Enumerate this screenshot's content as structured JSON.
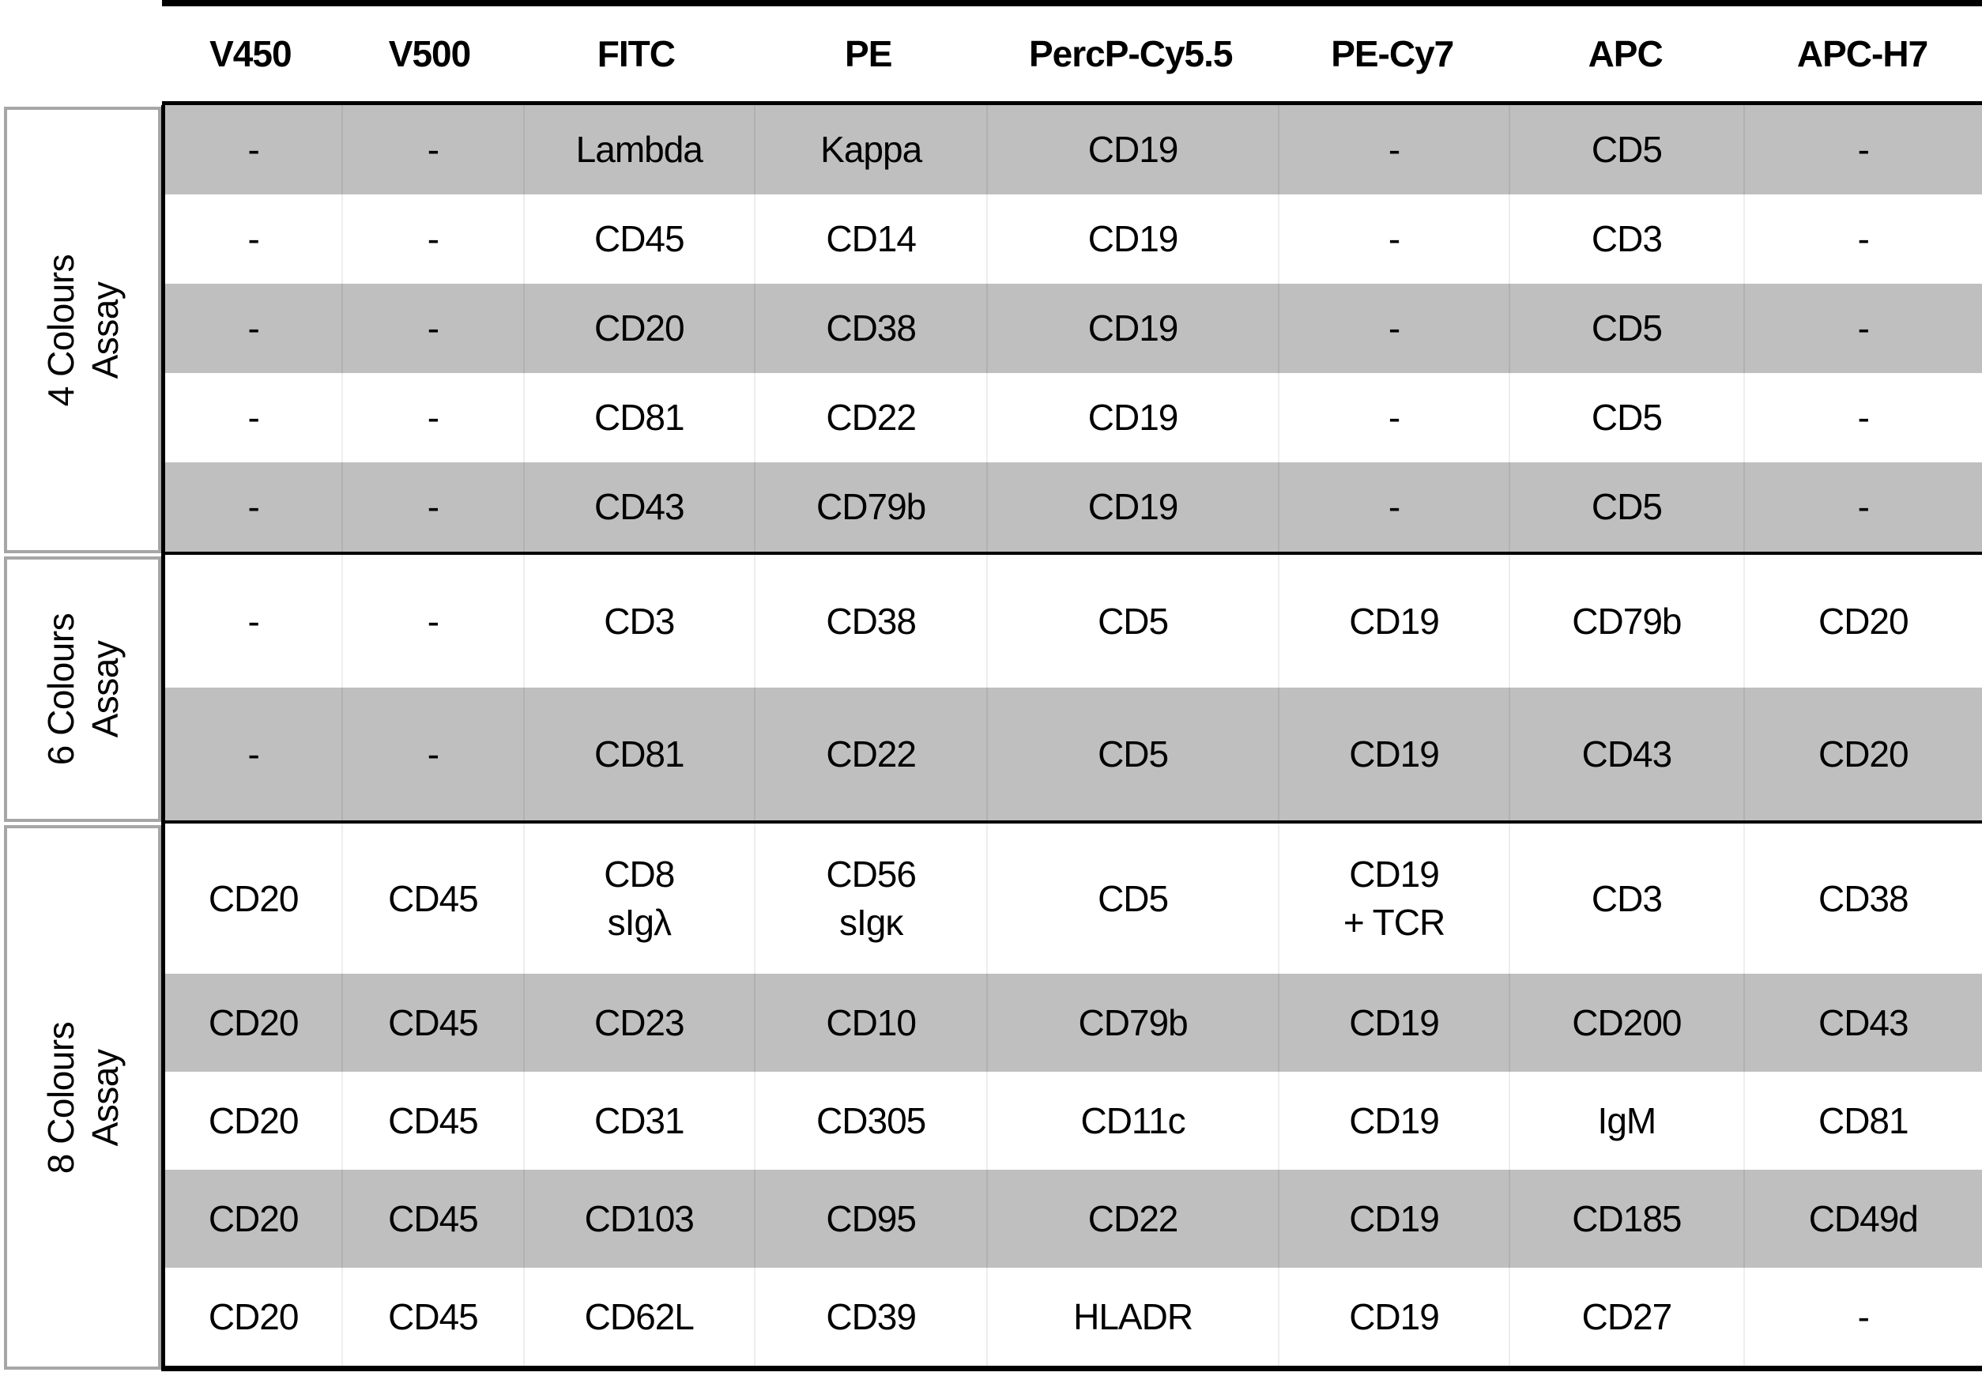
{
  "table": {
    "columns": [
      "V450",
      "V500",
      "FITC",
      "PE",
      "PercP-Cy5.5",
      "PE-Cy7",
      "APC",
      "APC-H7"
    ],
    "sections": [
      {
        "label": "4 Colours\nAssay",
        "rows": [
          {
            "shaded": true,
            "cells": [
              "-",
              "-",
              "Lambda",
              "Kappa",
              "CD19",
              "-",
              "CD5",
              "-"
            ]
          },
          {
            "shaded": false,
            "cells": [
              "-",
              "-",
              "CD45",
              "CD14",
              "CD19",
              "-",
              "CD3",
              "-"
            ]
          },
          {
            "shaded": true,
            "cells": [
              "-",
              "-",
              "CD20",
              "CD38",
              "CD19",
              "-",
              "CD5",
              "-"
            ]
          },
          {
            "shaded": false,
            "cells": [
              "-",
              "-",
              "CD81",
              "CD22",
              "CD19",
              "-",
              "CD5",
              "-"
            ]
          },
          {
            "shaded": true,
            "cells": [
              "-",
              "-",
              "CD43",
              "CD79b",
              "CD19",
              "-",
              "CD5",
              "-"
            ]
          }
        ]
      },
      {
        "label": "6 Colours\nAssay",
        "rows": [
          {
            "shaded": false,
            "cells": [
              "-",
              "-",
              "CD3",
              "CD38",
              "CD5",
              "CD19",
              "CD79b",
              "CD20"
            ]
          },
          {
            "shaded": true,
            "cells": [
              "-",
              "-",
              "CD81",
              "CD22",
              "CD5",
              "CD19",
              "CD43",
              "CD20"
            ]
          }
        ]
      },
      {
        "label": "8 Colours\nAssay",
        "rows": [
          {
            "shaded": false,
            "cells": [
              "CD20",
              "CD45",
              "CD8\nsIgλ",
              "CD56\nsIgκ",
              "CD5",
              "CD19\n+ TCR",
              "CD3",
              "CD38"
            ]
          },
          {
            "shaded": true,
            "cells": [
              "CD20",
              "CD45",
              "CD23",
              "CD10",
              "CD79b",
              "CD19",
              "CD200",
              "CD43"
            ]
          },
          {
            "shaded": false,
            "cells": [
              "CD20",
              "CD45",
              "CD31",
              "CD305",
              "CD11c",
              "CD19",
              "IgM",
              "CD81"
            ]
          },
          {
            "shaded": true,
            "cells": [
              "CD20",
              "CD45",
              "CD103",
              "CD95",
              "CD22",
              "CD19",
              "CD185",
              "CD49d"
            ]
          },
          {
            "shaded": false,
            "cells": [
              "CD20",
              "CD45",
              "CD62L",
              "CD39",
              "HLADR",
              "CD19",
              "CD27",
              "-"
            ]
          }
        ]
      }
    ]
  },
  "colors": {
    "shaded_row": "#bfbfbf",
    "label_border": "#a6a6a6",
    "line": "#000000"
  }
}
